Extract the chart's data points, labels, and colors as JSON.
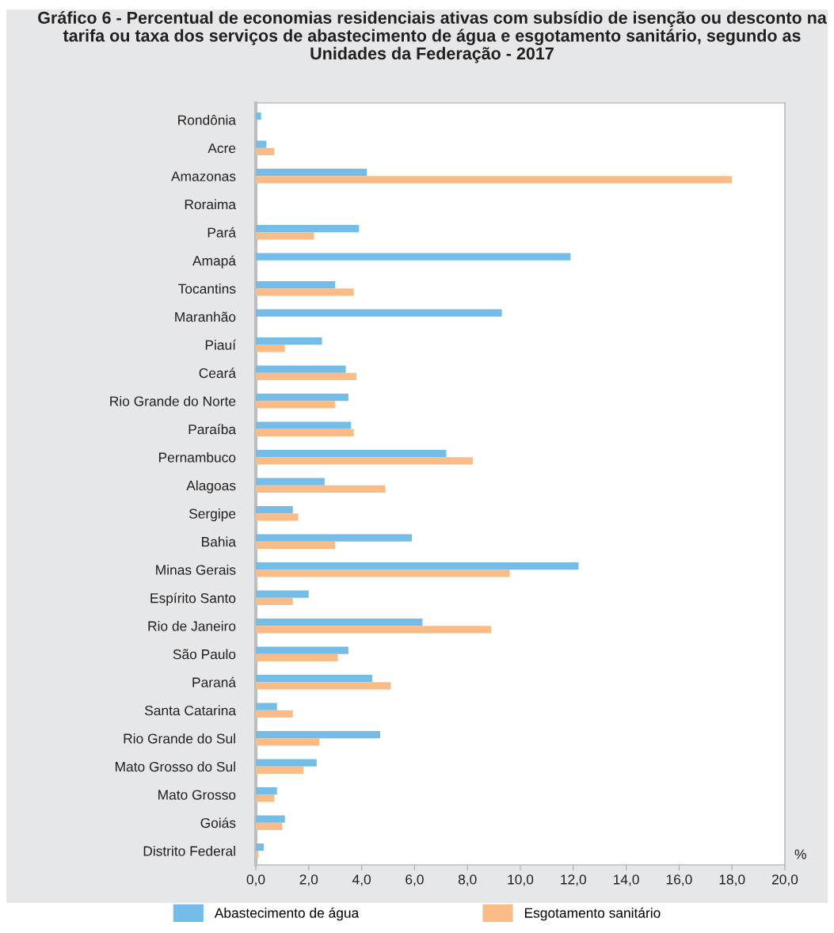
{
  "chart_data": {
    "type": "bar",
    "orientation": "horizontal",
    "title": "Gráfico 6 - Percentual de economias residenciais ativas com subsídio de isenção ou desconto na tarifa ou taxa dos serviços de abastecimento de água e esgotamento sanitário, segundo as Unidades da Federação - 2017",
    "xlabel": "%",
    "categories": [
      "Rondônia",
      "Acre",
      "Amazonas",
      "Roraima",
      "Pará",
      "Amapá",
      "Tocantins",
      "Maranhão",
      "Piauí",
      "Ceará",
      "Rio Grande do Norte",
      "Paraíba",
      "Pernambuco",
      "Alagoas",
      "Sergipe",
      "Bahia",
      "Minas Gerais",
      "Espírito Santo",
      "Rio de Janeiro",
      "São Paulo",
      "Paraná",
      "Santa Catarina",
      "Rio Grande do Sul",
      "Mato Grosso do Sul",
      "Mato Grosso",
      "Goiás",
      "Distrito Federal"
    ],
    "series": [
      {
        "name": "Abastecimento de água",
        "color": "#74bde8",
        "values": [
          0.2,
          0.4,
          4.2,
          null,
          3.9,
          11.9,
          3.0,
          9.3,
          2.5,
          3.4,
          3.5,
          3.6,
          7.2,
          2.6,
          1.4,
          5.9,
          12.2,
          2.0,
          6.3,
          3.5,
          4.4,
          0.8,
          4.7,
          2.3,
          0.8,
          1.1,
          0.3
        ]
      },
      {
        "name": "Esgotamento sanitário",
        "color": "#fabc86",
        "values": [
          null,
          0.7,
          18.0,
          null,
          2.2,
          null,
          3.7,
          null,
          1.1,
          3.8,
          3.0,
          3.7,
          8.2,
          4.9,
          1.6,
          3.0,
          9.6,
          1.4,
          8.9,
          3.1,
          5.1,
          1.4,
          2.4,
          1.8,
          0.7,
          1.0,
          0.1
        ]
      }
    ],
    "xlim": [
      0,
      20
    ],
    "xticks": [
      {
        "value": 0,
        "label": "0,0"
      },
      {
        "value": 2,
        "label": "2,0"
      },
      {
        "value": 4,
        "label": "4,0"
      },
      {
        "value": 6,
        "label": "6,0"
      },
      {
        "value": 8,
        "label": "8,0"
      },
      {
        "value": 10,
        "label": "10,0"
      },
      {
        "value": 12,
        "label": "12,0"
      },
      {
        "value": 14,
        "label": "14,0"
      },
      {
        "value": 16,
        "label": "16,0"
      },
      {
        "value": 18,
        "label": "18,0"
      },
      {
        "value": 20,
        "label": "20,0"
      }
    ],
    "grid": false,
    "legend": "bottom"
  }
}
